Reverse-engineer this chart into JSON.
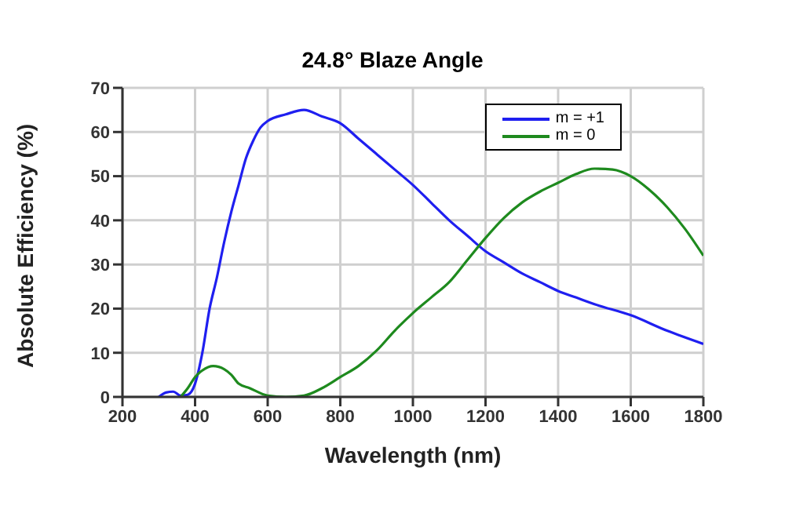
{
  "chart_data": {
    "type": "line",
    "title": "24.8° Blaze Angle",
    "xlabel": "Wavelength (nm)",
    "ylabel": "Absolute Efficiency (%)",
    "xlim": [
      200,
      1800
    ],
    "xticks": [
      200,
      400,
      600,
      800,
      1000,
      1200,
      1400,
      1600,
      1800
    ],
    "ylim": [
      0,
      70
    ],
    "yticks": [
      0,
      10,
      20,
      30,
      40,
      50,
      60,
      70
    ],
    "grid": true,
    "legend": "top right",
    "marker": "none",
    "line_style": "solid",
    "series": [
      {
        "name": "m = +1",
        "color": "#1f1ff0",
        "x": [
          300,
          320,
          340,
          360,
          380,
          400,
          420,
          440,
          460,
          480,
          500,
          520,
          540,
          560,
          580,
          600,
          650,
          700,
          750,
          800,
          850,
          900,
          950,
          1000,
          1050,
          1100,
          1150,
          1200,
          1250,
          1300,
          1350,
          1400,
          1450,
          1500,
          1600,
          1700,
          1800
        ],
        "values": [
          0,
          1,
          1.2,
          0.3,
          0.5,
          3,
          10,
          20,
          27,
          35,
          42,
          48,
          54,
          58,
          61,
          62.5,
          64,
          65,
          63.5,
          62,
          58.5,
          55,
          51.5,
          48,
          44,
          40,
          36.5,
          33,
          30.5,
          28,
          26,
          24,
          22.5,
          21,
          18.5,
          15,
          12
        ]
      },
      {
        "name": "m = 0",
        "color": "#1e8a1e",
        "x": [
          360,
          380,
          400,
          420,
          450,
          480,
          500,
          520,
          550,
          600,
          650,
          700,
          750,
          800,
          850,
          900,
          950,
          1000,
          1050,
          1100,
          1150,
          1200,
          1250,
          1300,
          1350,
          1400,
          1450,
          1500,
          1550,
          1600,
          1650,
          1700,
          1750,
          1800
        ],
        "values": [
          0,
          2,
          4.5,
          6,
          7,
          6.3,
          5,
          3,
          2,
          0.3,
          0,
          0.3,
          2,
          4.5,
          7,
          10.5,
          15,
          19,
          22.5,
          26,
          31,
          36,
          40.5,
          44,
          46.5,
          48.5,
          50.5,
          51.7,
          51.5,
          50,
          47,
          43,
          38,
          32
        ]
      }
    ]
  }
}
